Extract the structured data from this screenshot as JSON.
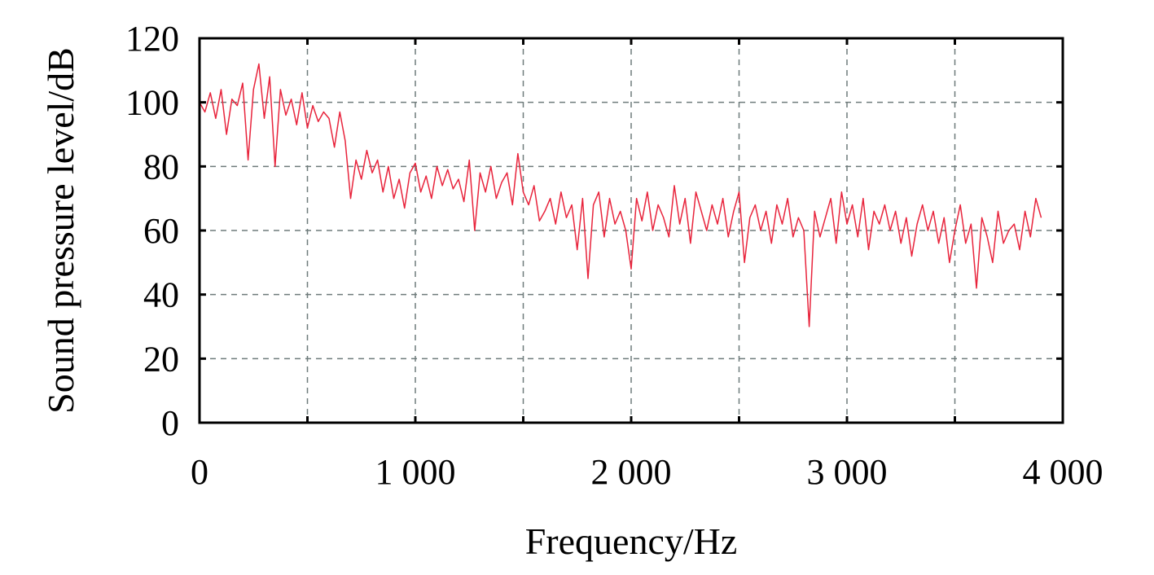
{
  "chart_data": {
    "type": "line",
    "xlabel": "Frequency/Hz",
    "ylabel": "Sound pressure level/dB",
    "color": "#e8243c",
    "xlim": [
      0,
      4000
    ],
    "ylim": [
      0,
      120
    ],
    "xticks": [
      0,
      {
        "value": 1000,
        "label": "1 000"
      },
      {
        "value": 2000,
        "label": "2 000"
      },
      {
        "value": 3000,
        "label": "3 000"
      },
      {
        "value": 4000,
        "label": "4 000"
      }
    ],
    "xminor": [
      500,
      1500,
      2500,
      3500
    ],
    "yticks": [
      0,
      20,
      40,
      60,
      80,
      100,
      120
    ],
    "grid": true,
    "x": [
      0,
      25,
      50,
      75,
      100,
      125,
      150,
      175,
      200,
      225,
      250,
      275,
      300,
      325,
      350,
      375,
      400,
      425,
      450,
      475,
      500,
      525,
      550,
      575,
      600,
      625,
      650,
      675,
      700,
      725,
      750,
      775,
      800,
      825,
      850,
      875,
      900,
      925,
      950,
      975,
      1000,
      1025,
      1050,
      1075,
      1100,
      1125,
      1150,
      1175,
      1200,
      1225,
      1250,
      1275,
      1300,
      1325,
      1350,
      1375,
      1400,
      1425,
      1450,
      1475,
      1500,
      1525,
      1550,
      1575,
      1600,
      1625,
      1650,
      1675,
      1700,
      1725,
      1750,
      1775,
      1800,
      1825,
      1850,
      1875,
      1900,
      1925,
      1950,
      1975,
      2000,
      2025,
      2050,
      2075,
      2100,
      2125,
      2150,
      2175,
      2200,
      2225,
      2250,
      2275,
      2300,
      2325,
      2350,
      2375,
      2400,
      2425,
      2450,
      2475,
      2500,
      2525,
      2550,
      2575,
      2600,
      2625,
      2650,
      2675,
      2700,
      2725,
      2750,
      2775,
      2800,
      2825,
      2850,
      2875,
      2900,
      2925,
      2950,
      2975,
      3000,
      3025,
      3050,
      3075,
      3100,
      3125,
      3150,
      3175,
      3200,
      3225,
      3250,
      3275,
      3300,
      3325,
      3350,
      3375,
      3400,
      3425,
      3450,
      3475,
      3500,
      3525,
      3550,
      3575,
      3600,
      3625,
      3650,
      3675,
      3700,
      3725,
      3750,
      3775,
      3800,
      3825,
      3850,
      3875,
      3900
    ],
    "values": [
      100,
      97,
      103,
      95,
      104,
      90,
      101,
      99,
      106,
      82,
      104,
      112,
      95,
      108,
      80,
      104,
      96,
      101,
      93,
      103,
      92,
      99,
      94,
      97,
      95,
      86,
      97,
      88,
      70,
      82,
      76,
      85,
      78,
      82,
      72,
      80,
      70,
      76,
      67,
      78,
      81,
      72,
      77,
      70,
      80,
      74,
      79,
      73,
      76,
      69,
      82,
      60,
      78,
      72,
      80,
      70,
      75,
      78,
      68,
      84,
      72,
      68,
      74,
      63,
      66,
      70,
      62,
      72,
      64,
      68,
      54,
      70,
      45,
      68,
      72,
      58,
      70,
      62,
      66,
      60,
      48,
      70,
      63,
      72,
      60,
      68,
      64,
      58,
      74,
      62,
      70,
      56,
      72,
      66,
      60,
      68,
      62,
      70,
      58,
      66,
      72,
      50,
      64,
      68,
      60,
      66,
      56,
      68,
      62,
      70,
      58,
      64,
      60,
      30,
      66,
      58,
      64,
      70,
      56,
      72,
      62,
      68,
      58,
      70,
      54,
      66,
      62,
      68,
      60,
      66,
      56,
      64,
      52,
      62,
      68,
      60,
      66,
      56,
      64,
      50,
      60,
      68,
      56,
      62,
      42,
      64,
      58,
      50,
      66,
      56,
      60,
      62,
      54,
      66,
      58,
      70,
      64
    ]
  }
}
